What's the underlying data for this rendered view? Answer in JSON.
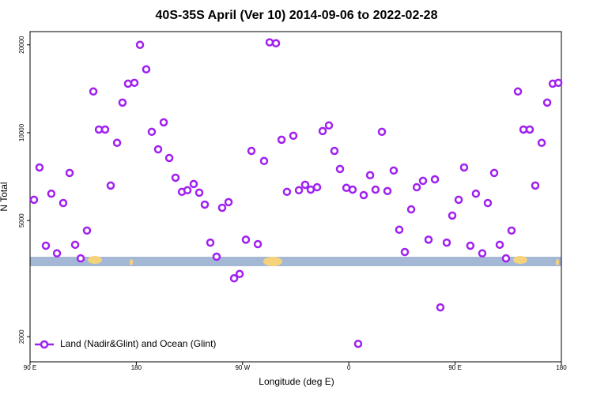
{
  "chart_data": {
    "type": "scatter",
    "title": "40S-35S April (Ver 10)   2014-09-06 to 2022-02-28",
    "xlabel": "Longitude (deg E)",
    "ylabel": "N Total",
    "yscale": "log",
    "xlim": [
      90,
      540
    ],
    "ylim": [
      1640,
      22200
    ],
    "xticks": [
      {
        "value": 90,
        "label": "90 E"
      },
      {
        "value": 180,
        "label": "180"
      },
      {
        "value": 270,
        "label": "90 W"
      },
      {
        "value": 360,
        "label": "0"
      },
      {
        "value": 450,
        "label": "90 E"
      },
      {
        "value": 540,
        "label": "180"
      }
    ],
    "yticks": [
      2000,
      5000,
      10000,
      20000
    ],
    "legend": "lower left",
    "series": [
      {
        "name": "Land (Nadir&Glint) and Ocean (Glint)",
        "color": "#a020f0",
        "x": [
          93.3,
          98,
          103.4,
          108,
          112.8,
          118.1,
          123.5,
          128.2,
          132.9,
          138.2,
          143.6,
          148.3,
          153.6,
          158.3,
          163.7,
          168.3,
          173,
          178.4,
          183.1,
          188.4,
          193.1,
          198.5,
          203.2,
          207.9,
          213.2,
          218.6,
          223.3,
          228.6,
          233.3,
          238,
          242.7,
          248,
          252.7,
          258.1,
          262.8,
          267.5,
          272.8,
          277.5,
          282.9,
          288.2,
          292.9,
          298.3,
          303,
          307.6,
          313,
          317.7,
          323,
          327.7,
          333.1,
          337.8,
          343.1,
          347.8,
          352.5,
          357.9,
          363.2,
          367.9,
          372.6,
          378,
          382.6,
          388,
          392.7,
          398,
          402.7,
          407.4,
          412.8,
          417.5,
          422.8,
          427.5,
          432.9,
          437.5,
          442.9,
          447.6,
          453,
          457.6,
          462.9,
          467.6,
          473,
          477.7,
          483.1,
          487.8,
          493.1,
          497.8,
          503.2,
          507.9,
          513.2,
          517.9,
          523.3,
          528,
          532.7,
          537.4
        ],
        "values": [
          5890,
          7600,
          4100,
          6180,
          3860,
          5740,
          7280,
          4130,
          3710,
          4620,
          13840,
          10250,
          10250,
          6590,
          9230,
          12680,
          14720,
          14820,
          20000,
          16480,
          10070,
          8770,
          10850,
          8190,
          7010,
          6270,
          6350,
          6670,
          6230,
          5670,
          4200,
          3760,
          5530,
          5780,
          3170,
          3280,
          4300,
          8660,
          4150,
          8000,
          20400,
          20250,
          9460,
          6270,
          9760,
          6350,
          6630,
          6380,
          6500,
          10130,
          10590,
          8660,
          7510,
          6470,
          6380,
          1890,
          6110,
          7150,
          6380,
          10070,
          6310,
          7420,
          4650,
          3900,
          5460,
          6500,
          6840,
          4300,
          6920,
          2520,
          4200,
          5200,
          5890,
          7600,
          4100,
          6180,
          3860,
          5740,
          7280,
          4130,
          3710,
          4620,
          13840,
          10250,
          10250,
          6590,
          9230,
          12680,
          14720,
          14820
        ]
      }
    ]
  }
}
